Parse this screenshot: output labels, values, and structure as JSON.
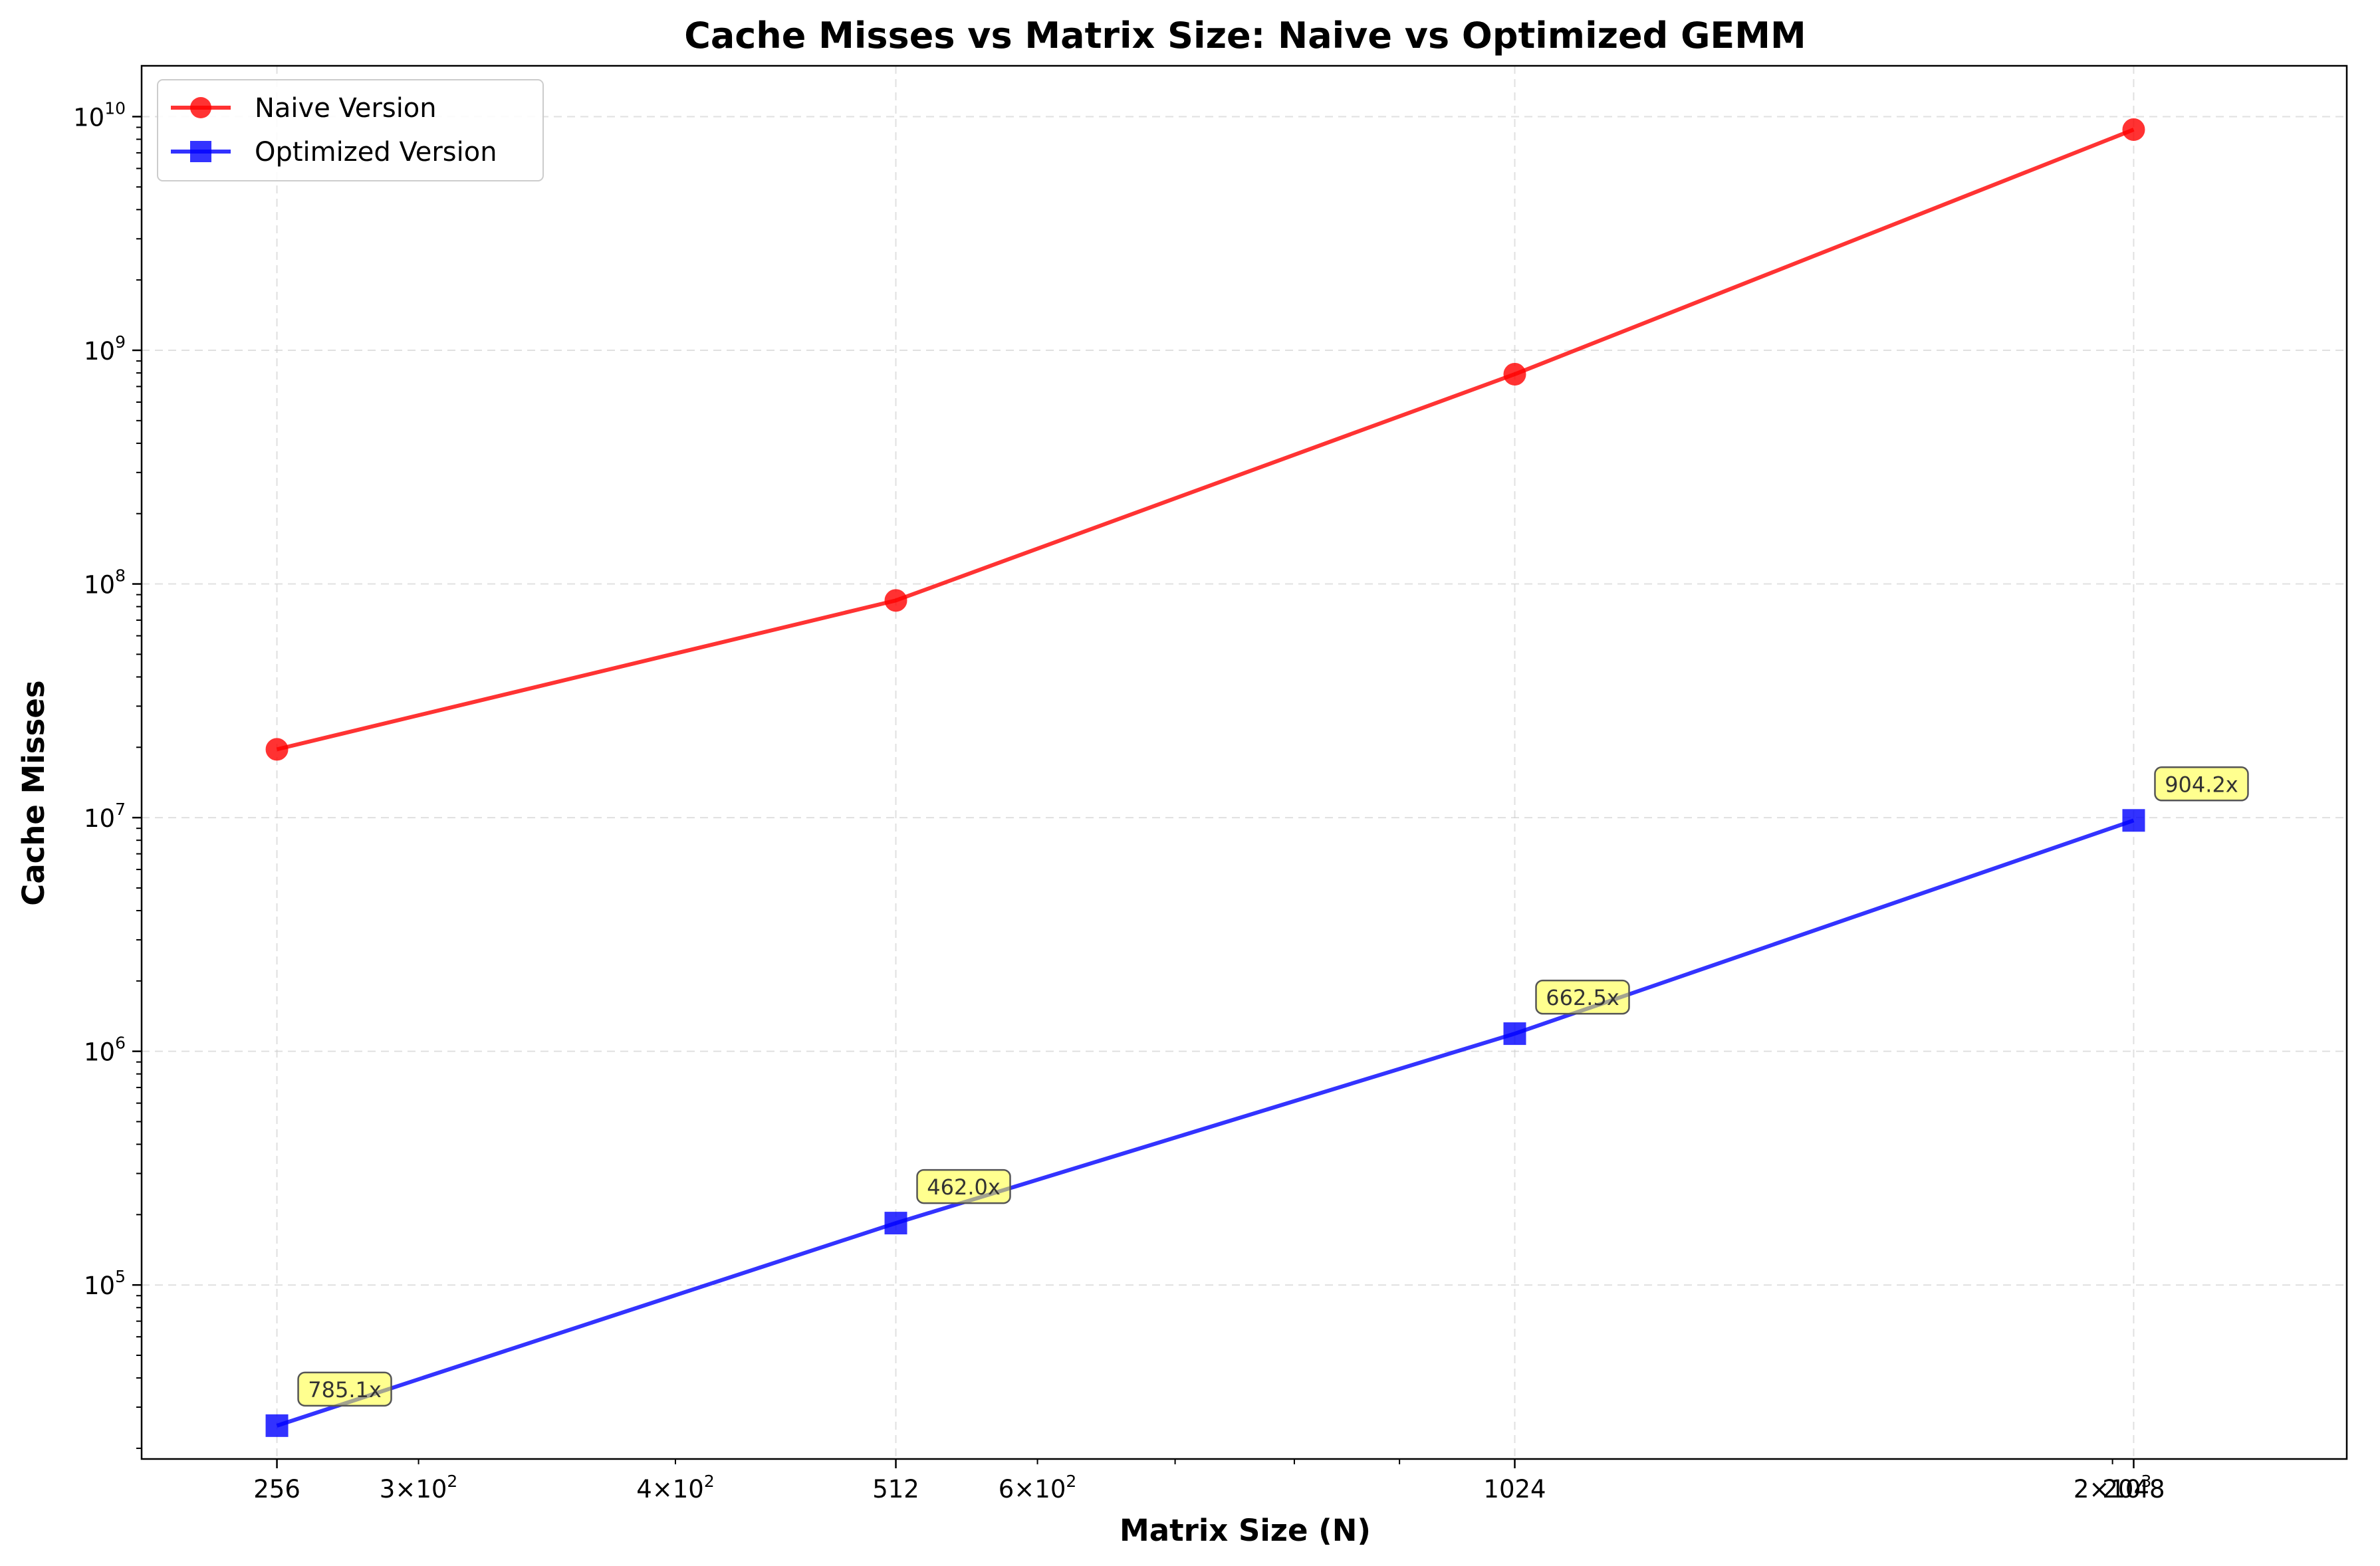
{
  "chart_data": {
    "type": "line",
    "title": "Cache Misses vs Matrix Size: Naive vs Optimized GEMM",
    "xlabel": "Matrix Size (N)",
    "ylabel": "Cache Misses",
    "x": [
      256,
      512,
      1024,
      2048
    ],
    "x_scale": "log",
    "y_scale": "log",
    "xlim": [
      220,
      2600
    ],
    "ylim": [
      18000,
      16500000000
    ],
    "x_tick_labels": [
      "256",
      "512",
      "1024",
      "2048"
    ],
    "x_auto_ticks": [
      {
        "value": 300,
        "mantissa": "3",
        "exponent": "2"
      },
      {
        "value": 400,
        "mantissa": "4",
        "exponent": "2"
      },
      {
        "value": 600,
        "mantissa": "6",
        "exponent": "2"
      },
      {
        "value": 2000,
        "mantissa": "2",
        "exponent": "3"
      }
    ],
    "y_ticks": [
      {
        "value": 100000,
        "base": "10",
        "exponent": "5"
      },
      {
        "value": 1000000,
        "base": "10",
        "exponent": "6"
      },
      {
        "value": 10000000,
        "base": "10",
        "exponent": "7"
      },
      {
        "value": 100000000,
        "base": "10",
        "exponent": "8"
      },
      {
        "value": 1000000000,
        "base": "10",
        "exponent": "9"
      },
      {
        "value": 10000000000,
        "base": "10",
        "exponent": "10"
      }
    ],
    "grid": true,
    "legend_position": "top-left",
    "series": [
      {
        "name": "Naive Version",
        "color": "#ff0000",
        "marker": "circle",
        "values": [
          19600000,
          85000000,
          790000000,
          8800000000
        ]
      },
      {
        "name": "Optimized Version",
        "color": "#0000ff",
        "marker": "square",
        "values": [
          25000,
          184000,
          1190000,
          9730000
        ]
      }
    ],
    "annotations": [
      {
        "x": 256,
        "y": 25000,
        "text": "785.1x"
      },
      {
        "x": 512,
        "y": 184000,
        "text": "462.0x"
      },
      {
        "x": 1024,
        "y": 1190000,
        "text": "662.5x"
      },
      {
        "x": 2048,
        "y": 9730000,
        "text": "904.2x"
      }
    ]
  }
}
